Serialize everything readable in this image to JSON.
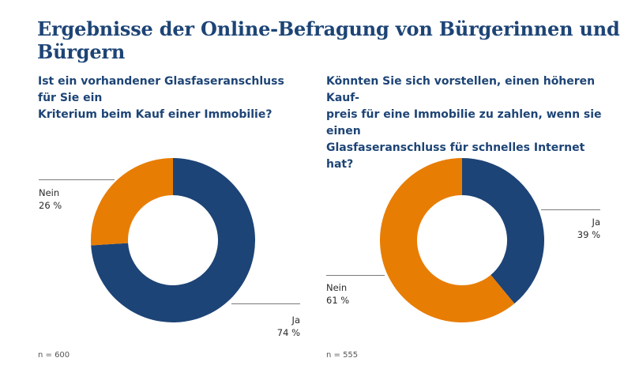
{
  "title": "Ergebnisse der Online-Befragung von Bürgerinnen und Bürgern",
  "colors": {
    "ja": "#1d4476",
    "nein": "#e87d04",
    "text": "#1d4476"
  },
  "chart_data": [
    {
      "type": "pie",
      "title": "Ist ein vorhandener Glasfaseranschluss für Sie ein\nKriterium beim Kauf einer Immobilie?",
      "slices": [
        {
          "label": "Ja",
          "value": 74,
          "display": "74 %",
          "color": "#1d4476"
        },
        {
          "label": "Nein",
          "value": 26,
          "display": "26 %",
          "color": "#e87d04"
        }
      ],
      "note": "n = 600"
    },
    {
      "type": "pie",
      "title": "Könnten Sie sich vorstellen, einen höheren Kauf-\npreis für eine Immobilie zu zahlen, wenn sie einen\nGlasfaseranschluss für schnelles Internet hat?",
      "slices": [
        {
          "label": "Ja",
          "value": 39,
          "display": "39 %",
          "color": "#1d4476"
        },
        {
          "label": "Nein",
          "value": 61,
          "display": "61 %",
          "color": "#e87d04"
        }
      ],
      "note": "n = 555"
    }
  ]
}
